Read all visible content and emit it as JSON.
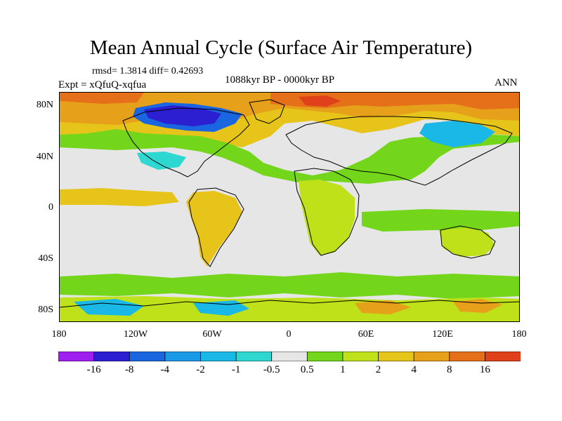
{
  "title": "Mean Annual Cycle (Surface Air Temperature)",
  "stats": "rmsd= 1.3814 diff= 0.42693",
  "expt": "Expt = xQfuQ-xqfua",
  "period": "1088kyr BP - 0000kyr BP",
  "season": "ANN",
  "y_axis_labels": [
    "80N",
    "40N",
    "0",
    "40S",
    "80S"
  ],
  "x_axis_labels": [
    "180",
    "120W",
    "60W",
    "0",
    "60E",
    "120E",
    "180"
  ],
  "colorbar": {
    "colors": [
      "#9f1ff0",
      "#2b1fd1",
      "#1a66e0",
      "#1a99e6",
      "#19b8e6",
      "#2ed8d0",
      "#e6e6e6",
      "#73d61a",
      "#bfe11a",
      "#e6c41a",
      "#e6a01a",
      "#e6701a",
      "#e0401a"
    ],
    "labels": [
      "-16",
      "-8",
      "-4",
      "-2",
      "-1",
      "-0.5",
      "0.5",
      "1",
      "2",
      "4",
      "8",
      "16"
    ]
  },
  "palette": {
    "neutral": "#e6e6e6",
    "green": "#73d61a",
    "yellowgreen": "#bfe11a",
    "gold": "#e6c41a",
    "orange": "#e6a01a",
    "darkorange": "#e6701a",
    "red": "#e0401a",
    "cyan": "#2ed8d0",
    "lightblue": "#19b8e6",
    "blue": "#1a66e0",
    "darkblue": "#2b1fd1"
  }
}
